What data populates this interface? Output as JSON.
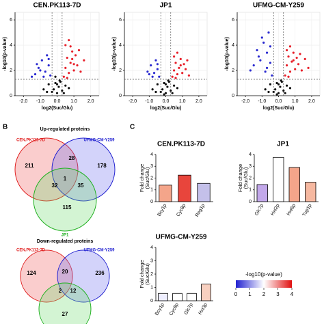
{
  "panels": {
    "b": "B",
    "c": "C"
  },
  "chart_data": [
    {
      "type": "scatter",
      "title": "CEN.PK113-7D",
      "xlabel": "log2(Suc/Glu)",
      "ylabel": "-log10(p-value)",
      "xlim": [
        -2.5,
        2.5
      ],
      "ylim": [
        0,
        6.6
      ],
      "xticks": [
        {
          "value": -2,
          "label": "-2.0"
        },
        {
          "value": -1,
          "label": "-1.0"
        },
        {
          "value": 0,
          "label": "0.0"
        },
        {
          "value": 1,
          "label": "1.0"
        },
        {
          "value": 2,
          "label": "2.0"
        }
      ],
      "yticks": [
        0,
        2,
        4,
        6
      ],
      "vlines": [
        -0.3,
        0.3
      ],
      "hline": 1.3,
      "series": [
        {
          "color": "#e8202a",
          "x": [
            0.4,
            0.5,
            0.6,
            0.7,
            0.8,
            0.9,
            1.0,
            1.1,
            1.2,
            1.4,
            1.6,
            0.5,
            0.7,
            0.9,
            1.3,
            0.6,
            0.8,
            1.0
          ],
          "y": [
            1.5,
            2.2,
            3.0,
            4.4,
            2.6,
            3.5,
            2.0,
            3.2,
            2.4,
            1.9,
            2.8,
            4.0,
            1.8,
            2.9,
            3.6,
            1.4,
            3.9,
            2.5
          ]
        },
        {
          "color": "#2a2ad0",
          "x": [
            -0.4,
            -0.5,
            -0.7,
            -0.9,
            -1.1,
            -1.3,
            -0.6,
            -0.8,
            -1.0,
            -1.5,
            -0.5,
            -1.2
          ],
          "y": [
            1.6,
            2.4,
            1.9,
            2.8,
            2.2,
            1.7,
            3.2,
            1.5,
            2.0,
            1.5,
            2.9,
            2.5
          ]
        },
        {
          "color": "#111111",
          "x": [
            -0.8,
            -0.5,
            -0.3,
            -0.1,
            0.0,
            0.1,
            0.2,
            0.3,
            0.5,
            0.7,
            -0.2,
            0.4,
            -0.6,
            0.0,
            0.15,
            -0.1
          ],
          "y": [
            0.5,
            0.9,
            0.3,
            1.0,
            0.2,
            0.7,
            1.1,
            0.4,
            0.8,
            0.6,
            0.5,
            0.2,
            0.3,
            0.9,
            1.2,
            1.5
          ]
        }
      ]
    },
    {
      "type": "scatter",
      "title": "JP1",
      "xlabel": "log2(Suc/Glu)",
      "ylabel": "-log10(p-value)",
      "xlim": [
        -2.5,
        2.5
      ],
      "ylim": [
        0,
        6.6
      ],
      "xticks": [
        {
          "value": -2,
          "label": "-2.0"
        },
        {
          "value": -1,
          "label": "-1.0"
        },
        {
          "value": 0,
          "label": "0.0"
        },
        {
          "value": 1,
          "label": "1.0"
        },
        {
          "value": 2,
          "label": "2.0"
        }
      ],
      "yticks": [
        0,
        2,
        4,
        6
      ],
      "vlines": [
        -0.3,
        0.3
      ],
      "hline": 1.3,
      "series": [
        {
          "color": "#e8202a",
          "x": [
            0.4,
            0.5,
            0.6,
            0.7,
            0.8,
            0.9,
            1.0,
            1.1,
            1.2,
            1.4,
            0.5,
            0.7,
            0.9,
            1.3,
            0.6
          ],
          "y": [
            1.5,
            2.0,
            2.6,
            3.4,
            2.2,
            2.9,
            1.8,
            2.5,
            2.1,
            1.6,
            3.1,
            1.7,
            2.4,
            2.8,
            1.4
          ]
        },
        {
          "color": "#2a2ad0",
          "x": [
            -0.4,
            -0.5,
            -0.7,
            -0.9,
            -1.1,
            -0.6,
            -0.8,
            -1.0,
            -0.5
          ],
          "y": [
            1.5,
            2.1,
            1.8,
            2.4,
            1.9,
            2.8,
            1.5,
            1.7,
            2.5
          ]
        },
        {
          "color": "#111111",
          "x": [
            -0.8,
            -0.5,
            -0.3,
            -0.1,
            0.0,
            0.1,
            0.2,
            0.3,
            0.5,
            0.7,
            -0.2,
            0.4,
            -0.6,
            0.0,
            0.15,
            -0.1
          ],
          "y": [
            0.5,
            0.9,
            0.3,
            1.0,
            0.2,
            0.7,
            1.1,
            0.4,
            0.8,
            0.6,
            0.5,
            0.2,
            0.3,
            0.9,
            1.2,
            0.1
          ]
        }
      ]
    },
    {
      "type": "scatter",
      "title": "UFMG-CM-Y259",
      "xlabel": "log2(Suc/Glu)",
      "ylabel": "-log10(p-value)",
      "xlim": [
        -2.5,
        2.5
      ],
      "ylim": [
        0,
        6.6
      ],
      "xticks": [
        {
          "value": -2,
          "label": "-2.0"
        },
        {
          "value": -1,
          "label": "-1.0"
        },
        {
          "value": 0,
          "label": "0.0"
        },
        {
          "value": 1,
          "label": "1.0"
        },
        {
          "value": 2,
          "label": "2.0"
        }
      ],
      "yticks": [
        0,
        2,
        4,
        6
      ],
      "vlines": [
        -0.3,
        0.3
      ],
      "hline": 1.3,
      "series": [
        {
          "color": "#e8202a",
          "x": [
            0.4,
            0.5,
            0.6,
            0.7,
            0.8,
            0.9,
            1.0,
            1.1,
            1.2,
            1.4,
            1.6,
            0.5,
            0.7,
            0.9,
            1.3,
            0.6,
            1.8
          ],
          "y": [
            1.6,
            2.4,
            3.1,
            3.9,
            2.7,
            3.4,
            2.1,
            3.0,
            2.5,
            2.0,
            2.9,
            3.6,
            1.9,
            2.8,
            3.3,
            1.5,
            2.2
          ]
        },
        {
          "color": "#2a2ad0",
          "x": [
            -0.4,
            -0.5,
            -0.7,
            -0.9,
            -1.1,
            -1.3,
            -0.6,
            -0.8,
            -1.0,
            -1.5,
            -0.5,
            -1.2,
            -1.7,
            -0.7
          ],
          "y": [
            1.6,
            2.6,
            3.4,
            4.2,
            2.8,
            3.6,
            5.0,
            1.9,
            4.6,
            2.4,
            3.9,
            3.1,
            2.0,
            2.2
          ]
        },
        {
          "color": "#111111",
          "x": [
            -0.8,
            -0.5,
            -0.3,
            -0.1,
            0.0,
            0.1,
            0.2,
            0.3,
            0.5,
            0.7,
            -0.2,
            0.4,
            -0.6,
            0.0,
            0.15,
            -0.1
          ],
          "y": [
            0.5,
            0.9,
            0.3,
            1.0,
            0.2,
            0.7,
            1.1,
            0.4,
            0.8,
            0.6,
            0.5,
            0.2,
            0.3,
            0.9,
            1.2,
            0.1
          ]
        }
      ]
    },
    {
      "type": "bar",
      "title": "CEN.PK113-7D",
      "ylabel": "Fold change (Suc/Glu)",
      "ylim": [
        0,
        4
      ],
      "yticks": [
        0,
        1,
        2,
        3,
        4
      ],
      "categories": [
        "Bcy1p",
        "Cyc8p",
        "Reg1p"
      ],
      "values": [
        1.4,
        2.25,
        1.55
      ],
      "colors": [
        "#f4a58a",
        "#e8453c",
        "#c4c0ea"
      ]
    },
    {
      "type": "bar",
      "title": "JP1",
      "ylabel": "Fold change (Suc/Glu)",
      "ylim": [
        0,
        4
      ],
      "yticks": [
        0,
        1,
        2,
        3,
        4
      ],
      "categories": [
        "Glc7p",
        "Hxt2p",
        "Hxt6p",
        "Tup1p"
      ],
      "values": [
        1.45,
        3.75,
        2.9,
        1.65
      ],
      "colors": [
        "#c2a8ea",
        "#ffffff",
        "#f4a58a",
        "#f6b8a0"
      ]
    },
    {
      "type": "bar",
      "title": "UFMG-CM-Y259",
      "ylabel": "Fold change (Suc/Glu)",
      "ylim": [
        0,
        4
      ],
      "yticks": [
        0,
        1,
        2,
        3,
        4
      ],
      "categories": [
        "Bcy1p",
        "Cyc8p",
        "Glc7p",
        "Hxt3p"
      ],
      "values": [
        0.55,
        0.55,
        0.55,
        1.25
      ],
      "colors": [
        "#eeeeff",
        "#ffffff",
        "#ffffff",
        "#f8d0c0"
      ]
    }
  ],
  "venn": {
    "up": {
      "title": "Up-regulated proteins",
      "labels": [
        "CEN.PK113-7D",
        "UFMG-CM-Y259",
        "JP1"
      ],
      "counts": [
        "211",
        "28",
        "178",
        "1",
        "32",
        "35",
        "115"
      ]
    },
    "down": {
      "title": "Down-regulated proteins",
      "labels": [
        "CEN.PK113-7D",
        "UFMG-CM-Y259"
      ],
      "counts": [
        "124",
        "20",
        "236",
        "2",
        "12",
        "27"
      ]
    }
  },
  "colorbar": {
    "label": "-log10(p-value)",
    "lim": [
      0,
      4
    ],
    "ticks": [
      0,
      1,
      2,
      3,
      4
    ],
    "colors": [
      "#2020d0",
      "#ffffff",
      "#e01010"
    ]
  }
}
